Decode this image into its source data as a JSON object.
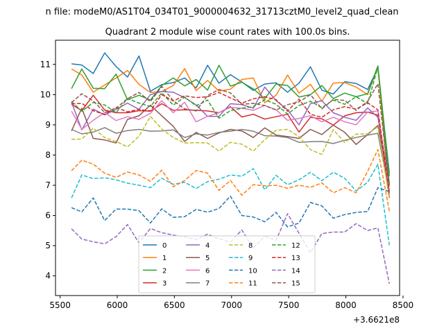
{
  "chart_data": {
    "type": "line",
    "suptitle": "n file: modeM0/AS1T04_034T01_9000004632_31713cztM0_level2_quad_clean",
    "title": "Quadrant 2 module wise count rates with 100.0s bins.",
    "xlabel": "",
    "ylabel": "",
    "x_offset_label": "+3.6621e8",
    "xlim": [
      5460,
      8470
    ],
    "ylim": [
      3.35,
      11.8
    ],
    "x_ticks": [
      5500,
      6000,
      6500,
      7000,
      7500,
      8000,
      8500
    ],
    "x_tick_labels": [
      "5500",
      "6000",
      "6500",
      "7000",
      "7500",
      "8000",
      "8500"
    ],
    "y_ticks": [
      4,
      5,
      6,
      7,
      8,
      9,
      10,
      11
    ],
    "y_tick_labels": [
      "4",
      "5",
      "6",
      "7",
      "8",
      "9",
      "10",
      "11"
    ],
    "legend_location": "lower-center",
    "x": [
      5600,
      5690,
      5790,
      5890,
      5990,
      6090,
      6190,
      6290,
      6390,
      6490,
      6590,
      6690,
      6790,
      6890,
      6990,
      7090,
      7190,
      7290,
      7390,
      7490,
      7590,
      7690,
      7790,
      7890,
      7990,
      8090,
      8190,
      8280,
      8380
    ],
    "series": [
      {
        "name": "0",
        "color": "#1f77b4",
        "dash": "solid",
        "values": [
          11.02,
          10.98,
          10.7,
          11.38,
          10.93,
          10.58,
          11.28,
          10.11,
          10.33,
          10.4,
          10.55,
          10.22,
          10.97,
          10.38,
          10.66,
          10.42,
          10.14,
          10.35,
          10.39,
          10.08,
          10.38,
          10.92,
          10.15,
          10.02,
          10.43,
          10.37,
          10.17,
          10.88,
          7.4
        ]
      },
      {
        "name": "1",
        "color": "#ff7f0e",
        "dash": "solid",
        "values": [
          10.85,
          10.65,
          10.08,
          10.32,
          10.55,
          10.8,
          10.34,
          10.07,
          10.1,
          10.3,
          10.86,
          10.13,
          10.47,
          10.12,
          10.18,
          10.5,
          10.55,
          9.73,
          9.98,
          10.65,
          10.05,
          10.34,
          9.78,
          10.38,
          10.4,
          10.25,
          10.0,
          10.92,
          6.6
        ]
      },
      {
        "name": "2",
        "color": "#2ca02c",
        "dash": "solid",
        "values": [
          10.2,
          10.85,
          10.21,
          10.2,
          10.68,
          9.83,
          9.98,
          9.82,
          10.3,
          10.55,
          10.29,
          10.5,
          10.15,
          10.97,
          10.28,
          10.41,
          10.19,
          9.87,
          10.35,
          10.3,
          9.92,
          10.0,
          10.3,
          9.87,
          10.05,
          9.93,
          10.03,
          10.95,
          7.3
        ]
      },
      {
        "name": "3",
        "color": "#d62728",
        "dash": "solid",
        "values": [
          9.68,
          9.47,
          9.98,
          9.49,
          9.4,
          9.4,
          9.47,
          9.45,
          9.7,
          9.48,
          9.5,
          9.48,
          9.46,
          9.4,
          9.6,
          9.26,
          9.35,
          9.19,
          9.27,
          9.35,
          8.76,
          9.25,
          9.2,
          8.99,
          9.3,
          9.4,
          9.42,
          9.32,
          6.58
        ]
      },
      {
        "name": "4",
        "color": "#9467bd",
        "dash": "solid",
        "values": [
          9.75,
          8.83,
          9.52,
          9.33,
          9.51,
          9.72,
          9.51,
          10.0,
          10.1,
          10.08,
          9.9,
          9.66,
          9.28,
          9.28,
          9.7,
          9.67,
          9.55,
          10.25,
          9.8,
          9.5,
          9.0,
          9.7,
          9.8,
          9.4,
          9.25,
          9.15,
          9.56,
          9.25,
          7.1
        ]
      },
      {
        "name": "5",
        "color": "#8c564b",
        "dash": "solid",
        "values": [
          8.8,
          9.55,
          8.55,
          8.5,
          8.4,
          9.18,
          9.3,
          9.65,
          9.3,
          8.95,
          8.45,
          8.75,
          8.55,
          8.73,
          8.85,
          8.8,
          8.58,
          8.9,
          8.66,
          8.61,
          8.55,
          8.85,
          8.68,
          8.99,
          8.75,
          8.35,
          8.68,
          8.98,
          7.05
        ]
      },
      {
        "name": "6",
        "color": "#e377c2",
        "dash": "solid",
        "values": [
          9.45,
          8.85,
          9.15,
          9.41,
          9.14,
          9.27,
          9.18,
          9.38,
          9.8,
          9.4,
          9.75,
          9.1,
          9.28,
          9.4,
          9.58,
          9.55,
          9.48,
          9.64,
          9.5,
          9.15,
          9.21,
          9.3,
          9.1,
          9.25,
          9.1,
          9.0,
          9.42,
          9.46,
          6.85
        ]
      },
      {
        "name": "7",
        "color": "#7f7f7f",
        "dash": "solid",
        "values": [
          8.85,
          8.7,
          8.76,
          8.91,
          8.72,
          8.81,
          8.85,
          8.79,
          8.8,
          8.83,
          8.58,
          8.7,
          8.66,
          8.75,
          8.79,
          8.85,
          8.79,
          8.64,
          8.63,
          8.58,
          8.42,
          8.44,
          8.45,
          8.38,
          8.49,
          8.58,
          8.66,
          8.72,
          6.74
        ]
      },
      {
        "name": "8",
        "color": "#bcbd22",
        "dash": "dashed",
        "values": [
          8.52,
          8.53,
          8.89,
          8.58,
          8.45,
          8.27,
          8.62,
          9.28,
          8.86,
          8.58,
          8.4,
          8.41,
          8.4,
          8.13,
          8.42,
          8.36,
          8.13,
          8.51,
          8.82,
          8.85,
          8.61,
          8.18,
          8.02,
          8.84,
          8.42,
          8.69,
          8.7,
          8.94,
          6.57
        ]
      },
      {
        "name": "9",
        "color": "#17becf",
        "dash": "dashed",
        "values": [
          6.58,
          7.34,
          7.22,
          7.25,
          7.18,
          7.07,
          7.0,
          6.92,
          7.23,
          7.03,
          7.1,
          6.89,
          7.12,
          7.2,
          7.34,
          7.3,
          7.55,
          6.85,
          7.33,
          7.02,
          7.18,
          7.43,
          7.15,
          7.43,
          7.23,
          6.81,
          7.1,
          7.7,
          5.02
        ]
      },
      {
        "name": "10",
        "color": "#1f77b4",
        "dash": "dashed",
        "values": [
          6.26,
          6.12,
          6.58,
          5.83,
          6.21,
          6.21,
          6.16,
          5.75,
          6.22,
          5.94,
          5.96,
          6.2,
          6.11,
          6.23,
          6.64,
          6.0,
          5.95,
          5.79,
          6.1,
          5.62,
          5.75,
          6.43,
          6.32,
          5.91,
          6.03,
          6.1,
          6.13,
          6.92,
          6.79
        ]
      },
      {
        "name": "11",
        "color": "#ff7f0e",
        "dash": "dashed",
        "values": [
          7.48,
          7.83,
          7.7,
          7.4,
          7.26,
          7.44,
          7.34,
          7.13,
          7.5,
          6.95,
          7.16,
          7.49,
          7.4,
          6.83,
          7.16,
          6.67,
          7.02,
          6.98,
          7.0,
          6.9,
          7.0,
          6.93,
          7.08,
          6.75,
          6.92,
          6.75,
          7.46,
          8.18,
          6.15
        ]
      },
      {
        "name": "12",
        "color": "#2ca02c",
        "dash": "dashed",
        "values": [
          9.77,
          9.45,
          9.74,
          9.66,
          9.4,
          9.87,
          9.72,
          9.61,
          10.06,
          9.65,
          9.92,
          9.63,
          9.82,
          9.22,
          9.47,
          9.55,
          9.6,
          9.83,
          9.68,
          9.36,
          9.64,
          9.78,
          9.57,
          9.82,
          9.68,
          9.93,
          9.7,
          10.92,
          7.0
        ]
      },
      {
        "name": "13",
        "color": "#d62728",
        "dash": "dashed",
        "values": [
          9.69,
          9.71,
          9.47,
          9.34,
          9.58,
          9.43,
          9.51,
          9.46,
          10.0,
          9.79,
          9.96,
          9.9,
          9.93,
          10.07,
          9.89,
          9.72,
          9.86,
          9.93,
          9.83,
          9.45,
          9.85,
          9.35,
          9.25,
          9.5,
          9.6,
          9.52,
          9.73,
          9.5,
          6.79
        ]
      },
      {
        "name": "14",
        "color": "#9467bd",
        "dash": "dashed",
        "values": [
          5.56,
          5.22,
          5.13,
          5.06,
          5.3,
          5.7,
          5.09,
          5.57,
          5.43,
          5.35,
          5.29,
          5.2,
          5.38,
          5.23,
          5.12,
          5.52,
          4.92,
          5.31,
          5.18,
          6.06,
          5.41,
          4.77,
          5.4,
          5.45,
          5.45,
          5.73,
          5.5,
          5.59,
          3.74
        ]
      },
      {
        "name": "15",
        "color": "#8c564b",
        "dash": "dashed",
        "values": [
          9.74,
          10.03,
          9.79,
          9.41,
          9.55,
          9.87,
          10.07,
          9.77,
          10.27,
          9.8,
          9.53,
          9.46,
          9.97,
          10.17,
          10.06,
          9.68,
          9.71,
          9.64,
          9.49,
          9.67,
          9.76,
          10.0,
          9.53,
          9.84,
          9.81,
          9.48,
          9.78,
          10.36,
          6.99
        ]
      }
    ]
  }
}
